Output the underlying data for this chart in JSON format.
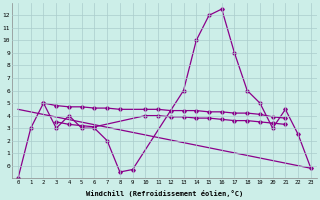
{
  "background_color": "#cceee8",
  "grid_color": "#aacccc",
  "line_color": "#8b008b",
  "xlabel": "Windchill (Refroidissement éolien,°C)",
  "ylim": [
    -1,
    13
  ],
  "xlim": [
    -0.5,
    23.5
  ],
  "yticks": [
    0,
    1,
    2,
    3,
    4,
    5,
    6,
    7,
    8,
    9,
    10,
    11,
    12
  ],
  "xticks": [
    0,
    1,
    2,
    3,
    4,
    5,
    6,
    7,
    8,
    9,
    10,
    11,
    12,
    13,
    14,
    15,
    16,
    17,
    18,
    19,
    20,
    21,
    22,
    23
  ],
  "line1_x": [
    0,
    1,
    2,
    3,
    4,
    5,
    6,
    7,
    8,
    9,
    13,
    14,
    15,
    16,
    17,
    18,
    19,
    20,
    21,
    22,
    23
  ],
  "line1_y": [
    -1,
    3,
    5,
    3,
    4,
    3,
    3,
    2,
    -0.5,
    -0.3,
    6,
    10,
    12,
    12.5,
    9,
    6,
    5,
    3,
    4.5,
    2.5,
    -0.2
  ],
  "line2_x": [
    2,
    3,
    4,
    5,
    6,
    7,
    8,
    10,
    11,
    12,
    13,
    14,
    15,
    16,
    17,
    18,
    19,
    20,
    21
  ],
  "line2_y": [
    5.0,
    4.8,
    4.7,
    4.7,
    4.6,
    4.6,
    4.5,
    4.5,
    4.5,
    4.4,
    4.4,
    4.4,
    4.3,
    4.3,
    4.2,
    4.2,
    4.1,
    3.9,
    3.8
  ],
  "line3_x": [
    3,
    4,
    5,
    6,
    10,
    11,
    12,
    13,
    14,
    15,
    16,
    17,
    18,
    19,
    20,
    21
  ],
  "line3_y": [
    3.5,
    3.3,
    3.2,
    3.1,
    4.0,
    4.0,
    3.9,
    3.9,
    3.8,
    3.8,
    3.7,
    3.6,
    3.6,
    3.5,
    3.4,
    3.3
  ],
  "line4_x": [
    0,
    23
  ],
  "line4_y": [
    4.5,
    -0.2
  ]
}
